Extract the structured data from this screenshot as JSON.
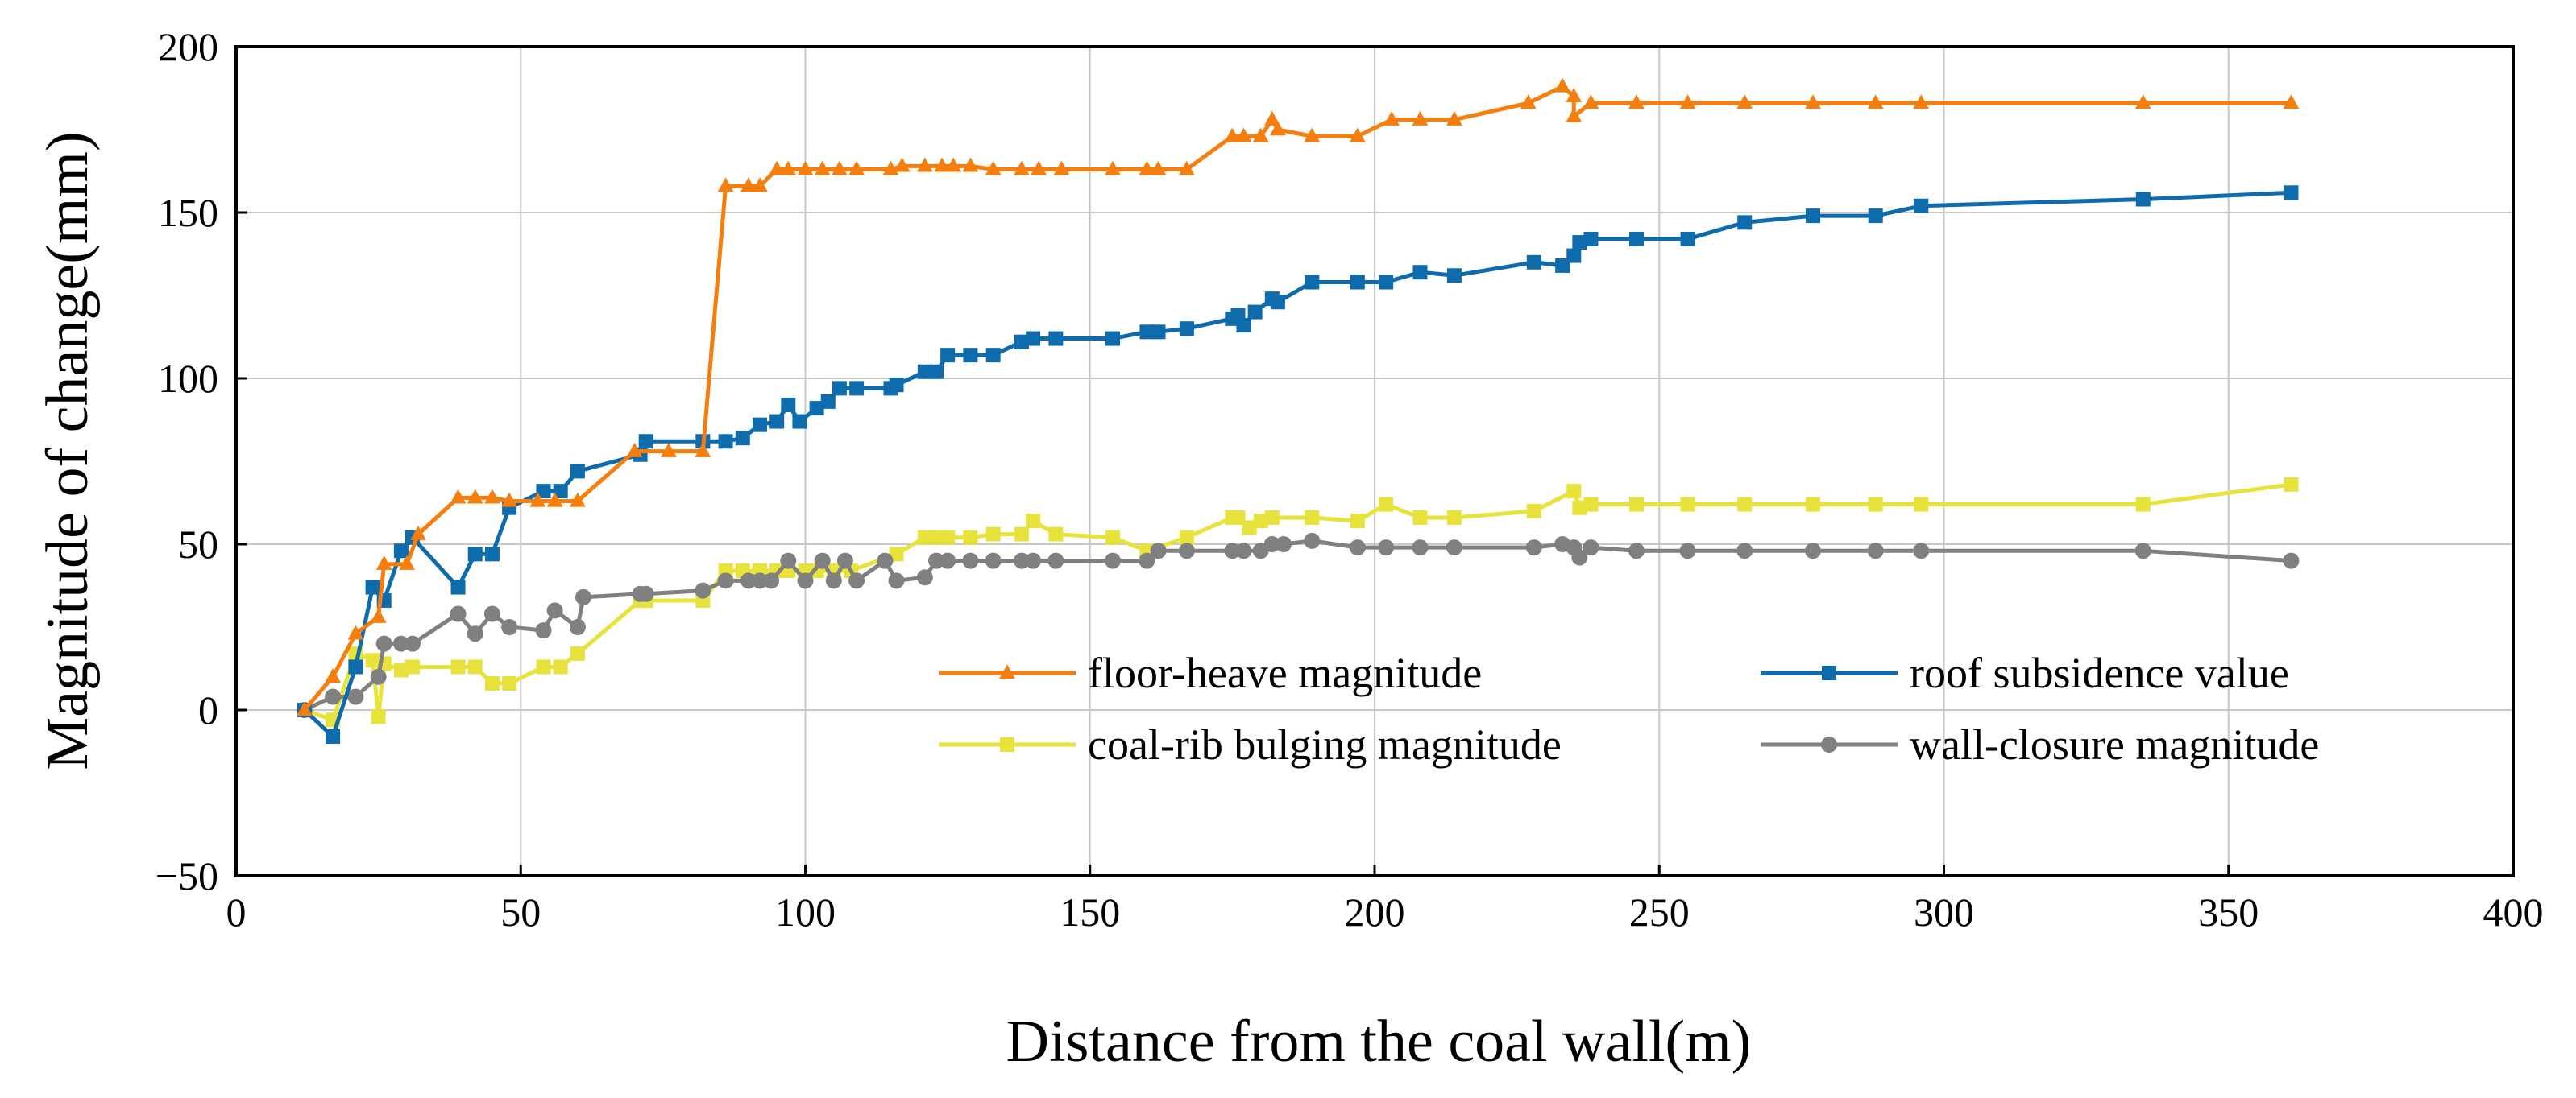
{
  "chart_data": {
    "type": "line",
    "title": "",
    "xlabel": "Distance from the coal wall(m)",
    "ylabel": "Magnitude of change(mm)",
    "xlim": [
      0,
      400
    ],
    "ylim": [
      -50,
      200
    ],
    "xticks": [
      0,
      50,
      100,
      150,
      200,
      250,
      300,
      350,
      400
    ],
    "yticks": [
      -50,
      0,
      50,
      100,
      150,
      200
    ],
    "yticks_labels": [
      "−50",
      "0",
      "50",
      "100",
      "150",
      "200"
    ],
    "grid": true,
    "legend_position": "lower-right",
    "series": [
      {
        "name": "floor-heave magnitude",
        "color": "#F47F0E",
        "marker": "triangle",
        "x": [
          12,
          17,
          21,
          25,
          26,
          30,
          32,
          39,
          42,
          45,
          48,
          53,
          56,
          60,
          70,
          76,
          82,
          86,
          90,
          92,
          95,
          97,
          100,
          103,
          106,
          109,
          115,
          117,
          121,
          124,
          126,
          129,
          133,
          138,
          141,
          145,
          154,
          160,
          162,
          167,
          175,
          177,
          180,
          182,
          183,
          189,
          197,
          203,
          208,
          214,
          227,
          233,
          235,
          235,
          238,
          246,
          255,
          265,
          277,
          288,
          296,
          335,
          361
        ],
        "y": [
          0,
          10,
          23,
          28,
          44,
          44,
          53,
          64,
          64,
          64,
          63,
          63,
          63,
          63,
          78,
          78,
          78,
          158,
          158,
          158,
          163,
          163,
          163,
          163,
          163,
          163,
          163,
          164,
          164,
          164,
          164,
          164,
          163,
          163,
          163,
          163,
          163,
          163,
          163,
          163,
          173,
          173,
          173,
          178,
          175,
          173,
          173,
          178,
          178,
          178,
          183,
          188,
          185,
          179,
          183,
          183,
          183,
          183,
          183,
          183,
          183,
          183,
          183
        ]
      },
      {
        "name": "roof subsidence value",
        "color": "#0E6BAC",
        "marker": "square",
        "x": [
          12,
          17,
          21,
          24,
          26,
          29,
          31,
          39,
          42,
          45,
          48,
          54,
          57,
          60,
          71,
          72,
          82,
          86,
          89,
          92,
          95,
          97,
          99,
          102,
          104,
          106,
          109,
          115,
          116,
          121,
          123,
          125,
          129,
          133,
          138,
          140,
          144,
          154,
          160,
          162,
          167,
          175,
          176,
          177,
          179,
          182,
          183,
          189,
          197,
          202,
          208,
          214,
          228,
          233,
          235,
          236,
          238,
          246,
          255,
          265,
          277,
          288,
          296,
          335,
          361
        ],
        "y": [
          0,
          -8,
          13,
          37,
          33,
          48,
          52,
          37,
          47,
          47,
          61,
          66,
          66,
          72,
          77,
          81,
          81,
          81,
          82,
          86,
          87,
          92,
          87,
          91,
          93,
          97,
          97,
          97,
          98,
          102,
          102,
          107,
          107,
          107,
          111,
          112,
          112,
          112,
          114,
          114,
          115,
          118,
          119,
          116,
          120,
          124,
          123,
          129,
          129,
          129,
          132,
          131,
          135,
          134,
          137,
          141,
          142,
          142,
          142,
          147,
          149,
          149,
          152,
          154,
          156
        ]
      },
      {
        "name": "coal-rib bulging magnitude",
        "color": "#E8E23C",
        "marker": "square",
        "x": [
          12,
          17,
          21,
          24,
          25,
          26,
          29,
          31,
          39,
          42,
          45,
          48,
          54,
          57,
          60,
          71,
          72,
          82,
          86,
          89,
          92,
          95,
          97,
          100,
          102,
          105,
          108,
          116,
          121,
          123,
          125,
          129,
          133,
          138,
          140,
          144,
          154,
          160,
          167,
          175,
          176,
          178,
          180,
          182,
          189,
          197,
          202,
          208,
          214,
          228,
          235,
          236,
          238,
          246,
          255,
          265,
          277,
          288,
          296,
          335,
          361
        ],
        "y": [
          0,
          -3,
          17,
          15,
          -2,
          14,
          12,
          13,
          13,
          13,
          8,
          8,
          13,
          13,
          17,
          33,
          33,
          33,
          42,
          42,
          42,
          42,
          42,
          42,
          42,
          42,
          42,
          47,
          52,
          52,
          52,
          52,
          53,
          53,
          57,
          53,
          52,
          48,
          52,
          58,
          58,
          55,
          57,
          58,
          58,
          57,
          62,
          58,
          58,
          60,
          66,
          61,
          62,
          62,
          62,
          62,
          62,
          62,
          62,
          62,
          68
        ]
      },
      {
        "name": "wall-closure magnitude",
        "color": "#808080",
        "marker": "circle",
        "x": [
          12,
          17,
          21,
          25,
          26,
          29,
          31,
          39,
          42,
          45,
          48,
          54,
          56,
          60,
          61,
          71,
          72,
          82,
          86,
          90,
          92,
          94,
          97,
          100,
          103,
          105,
          107,
          109,
          114,
          116,
          121,
          123,
          125,
          129,
          133,
          138,
          140,
          144,
          154,
          160,
          162,
          167,
          175,
          177,
          180,
          182,
          184,
          189,
          197,
          202,
          208,
          214,
          228,
          233,
          235,
          236,
          238,
          246,
          255,
          265,
          277,
          288,
          296,
          335,
          361
        ],
        "y": [
          0,
          4,
          4,
          10,
          20,
          20,
          20,
          29,
          23,
          29,
          25,
          24,
          30,
          25,
          34,
          35,
          35,
          36,
          39,
          39,
          39,
          39,
          45,
          39,
          45,
          39,
          45,
          39,
          45,
          39,
          40,
          45,
          45,
          45,
          45,
          45,
          45,
          45,
          45,
          45,
          48,
          48,
          48,
          48,
          48,
          50,
          50,
          51,
          49,
          49,
          49,
          49,
          49,
          50,
          49,
          46,
          49,
          48,
          48,
          48,
          48,
          48,
          48,
          48,
          45
        ]
      }
    ]
  }
}
